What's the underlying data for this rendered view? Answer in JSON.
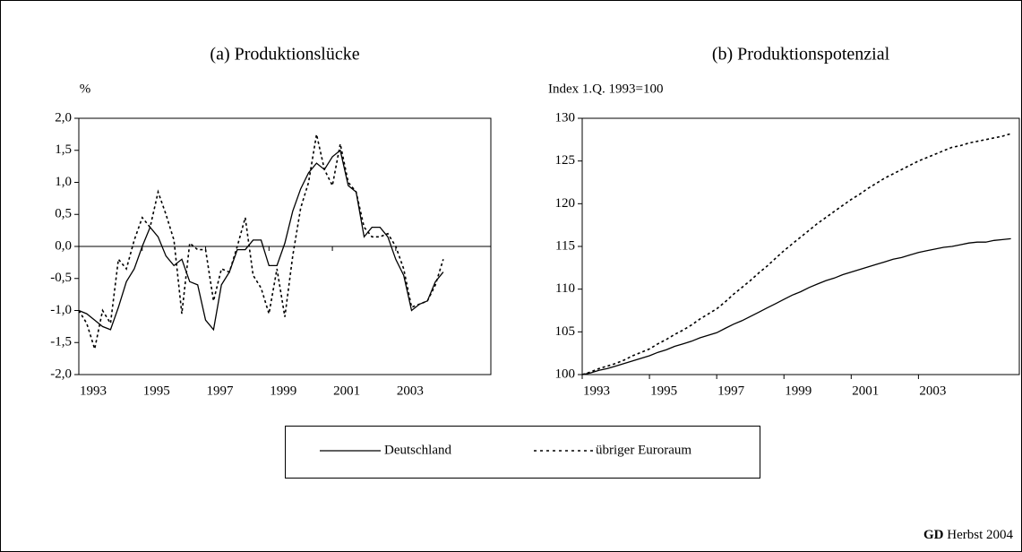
{
  "chart_data": [
    {
      "type": "line",
      "title": "(a) Produktionslücke",
      "y_label": "%",
      "x": [
        1993,
        1993.25,
        1993.5,
        1993.75,
        1994,
        1994.25,
        1994.5,
        1994.75,
        1995,
        1995.25,
        1995.5,
        1995.75,
        1996,
        1996.25,
        1996.5,
        1996.75,
        1997,
        1997.25,
        1997.5,
        1997.75,
        1998,
        1998.25,
        1998.5,
        1998.75,
        1999,
        1999.25,
        1999.5,
        1999.75,
        2000,
        2000.25,
        2000.5,
        2000.75,
        2001,
        2001.25,
        2001.5,
        2001.75,
        2002,
        2002.25,
        2002.5,
        2002.75,
        2003,
        2003.25,
        2003.5,
        2003.75,
        2004,
        2004.25,
        2004.5
      ],
      "xlim": [
        1993,
        2006
      ],
      "xticks": [
        1993,
        1995,
        1997,
        1999,
        2001,
        2003
      ],
      "ylim": [
        -2,
        2
      ],
      "yticks": [
        {
          "value": -2,
          "label": "-2,0"
        },
        {
          "value": -1.5,
          "label": "-1,5"
        },
        {
          "value": -1,
          "label": "-1,0"
        },
        {
          "value": -0.5,
          "label": "-0,5"
        },
        {
          "value": 0,
          "label": "0,0"
        },
        {
          "value": 0.5,
          "label": "0,5"
        },
        {
          "value": 1,
          "label": "1,0"
        },
        {
          "value": 1.5,
          "label": "1,5"
        },
        {
          "value": 2,
          "label": "2,0"
        }
      ],
      "series": [
        {
          "name": "Deutschland",
          "color": "#000000",
          "style": "solid",
          "values": [
            -1.0,
            -1.05,
            -1.15,
            -1.25,
            -1.3,
            -0.95,
            -0.55,
            -0.35,
            0.0,
            0.3,
            0.15,
            -0.15,
            -0.3,
            -0.2,
            -0.55,
            -0.6,
            -1.15,
            -1.3,
            -0.6,
            -0.4,
            -0.05,
            -0.05,
            0.1,
            0.1,
            -0.3,
            -0.3,
            0.05,
            0.55,
            0.9,
            1.15,
            1.3,
            1.2,
            1.4,
            1.5,
            0.95,
            0.85,
            0.15,
            0.3,
            0.3,
            0.15,
            -0.2,
            -0.45,
            -1.0,
            -0.9,
            -0.85,
            -0.55,
            -0.4
          ]
        },
        {
          "name": "übriger Euroraum",
          "color": "#000000",
          "style": "dotted",
          "values": [
            -1.0,
            -1.2,
            -1.6,
            -1.0,
            -1.2,
            -0.2,
            -0.35,
            0.1,
            0.45,
            0.3,
            0.85,
            0.5,
            0.1,
            -1.05,
            0.05,
            -0.05,
            -0.05,
            -0.85,
            -0.35,
            -0.4,
            0.0,
            0.45,
            -0.45,
            -0.65,
            -1.05,
            -0.35,
            -1.1,
            -0.15,
            0.6,
            1.0,
            1.75,
            1.2,
            0.95,
            1.6,
            1.0,
            0.85,
            0.3,
            0.15,
            0.15,
            0.2,
            0.0,
            -0.35,
            -0.95,
            -0.9,
            -0.85,
            -0.6,
            -0.2
          ]
        }
      ]
    },
    {
      "type": "line",
      "title": "(b) Produktionspotenzial",
      "y_label": "Index 1.Q. 1993=100",
      "x": [
        1993,
        1993.25,
        1993.5,
        1993.75,
        1994,
        1994.25,
        1994.5,
        1994.75,
        1995,
        1995.25,
        1995.5,
        1995.75,
        1996,
        1996.25,
        1996.5,
        1996.75,
        1997,
        1997.25,
        1997.5,
        1997.75,
        1998,
        1998.25,
        1998.5,
        1998.75,
        1999,
        1999.25,
        1999.5,
        1999.75,
        2000,
        2000.25,
        2000.5,
        2000.75,
        2001,
        2001.25,
        2001.5,
        2001.75,
        2002,
        2002.25,
        2002.5,
        2002.75,
        2003,
        2003.25,
        2003.5,
        2003.75,
        2004,
        2004.25,
        2004.5,
        2004.75,
        2005,
        2005.25,
        2005.5,
        2005.75
      ],
      "xlim": [
        1993,
        2006
      ],
      "xticks": [
        1993,
        1995,
        1997,
        1999,
        2001,
        2003
      ],
      "ylim": [
        100,
        130
      ],
      "yticks": [
        100,
        105,
        110,
        115,
        120,
        125,
        130
      ],
      "series": [
        {
          "name": "Deutschland",
          "color": "#000000",
          "style": "solid",
          "values": [
            100.0,
            100.2,
            100.5,
            100.7,
            101.0,
            101.3,
            101.6,
            101.9,
            102.2,
            102.6,
            102.9,
            103.3,
            103.6,
            103.9,
            104.3,
            104.6,
            104.9,
            105.4,
            105.9,
            106.3,
            106.8,
            107.3,
            107.8,
            108.3,
            108.8,
            109.3,
            109.7,
            110.2,
            110.6,
            111.0,
            111.3,
            111.7,
            112.0,
            112.3,
            112.6,
            112.9,
            113.2,
            113.5,
            113.7,
            114.0,
            114.3,
            114.5,
            114.7,
            114.9,
            115.0,
            115.2,
            115.4,
            115.5,
            115.5,
            115.7,
            115.8,
            115.9
          ]
        },
        {
          "name": "übriger Euroraum",
          "color": "#000000",
          "style": "dotted",
          "values": [
            100.0,
            100.3,
            100.7,
            101.0,
            101.3,
            101.7,
            102.2,
            102.6,
            103.0,
            103.6,
            104.1,
            104.7,
            105.2,
            105.8,
            106.5,
            107.1,
            107.7,
            108.5,
            109.4,
            110.2,
            111.0,
            111.9,
            112.7,
            113.6,
            114.5,
            115.3,
            116.1,
            116.9,
            117.7,
            118.4,
            119.1,
            119.8,
            120.5,
            121.1,
            121.8,
            122.4,
            123.0,
            123.5,
            124.0,
            124.5,
            125.0,
            125.4,
            125.8,
            126.2,
            126.6,
            126.8,
            127.1,
            127.3,
            127.5,
            127.7,
            127.9,
            128.2
          ]
        }
      ]
    }
  ],
  "footer_org": "GD",
  "footer_text": "Herbst 2004"
}
